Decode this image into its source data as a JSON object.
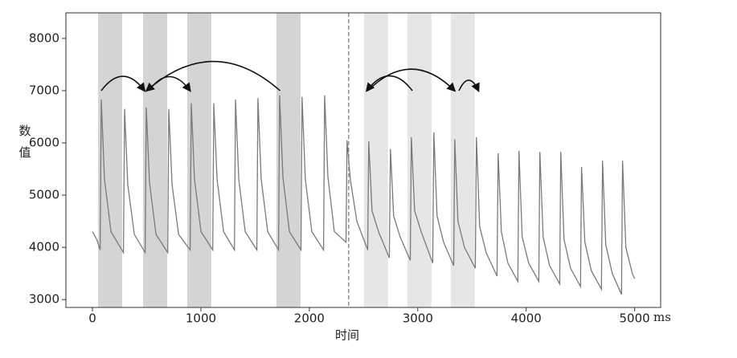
{
  "chart_data": {
    "type": "line",
    "x_label": "时间",
    "x_unit": "ms",
    "y_label": "数值",
    "xlim": [
      -245,
      5240
    ],
    "ylim": [
      2850,
      8490
    ],
    "xticks": [
      0,
      1000,
      2000,
      3000,
      4000,
      5000
    ],
    "yticks": [
      3000,
      4000,
      5000,
      6000,
      7000,
      8000
    ],
    "series": [
      {
        "color": "#7a7a7a",
        "x": [
          0,
          40,
          71,
          81,
          111,
          171,
          286,
          296,
          326,
          386,
          486,
          496,
          526,
          586,
          694,
          704,
          734,
          794,
          901,
          911,
          941,
          1001,
          1109,
          1119,
          1149,
          1209,
          1309,
          1319,
          1349,
          1409,
          1516,
          1526,
          1556,
          1616,
          1716,
          1726,
          1756,
          1816,
          1923,
          1933,
          1963,
          2023,
          2131,
          2141,
          2171,
          2231,
          2338,
          2348,
          2378,
          2438,
          2538,
          2548,
          2578,
          2638,
          2738,
          2748,
          2778,
          2838,
          2931,
          2941,
          2971,
          3031,
          3138,
          3148,
          3178,
          3238,
          3331,
          3341,
          3371,
          3431,
          3531,
          3541,
          3571,
          3631,
          3731,
          3741,
          3771,
          3831,
          3923,
          3933,
          3963,
          4023,
          4116,
          4126,
          4156,
          4216,
          4309,
          4319,
          4349,
          4409,
          4501,
          4511,
          4541,
          4601,
          4694,
          4704,
          4734,
          4794,
          4879,
          4889,
          4919,
          4979,
          5000
        ],
        "values": [
          4300,
          4150,
          3950,
          6830,
          5300,
          4300,
          3900,
          6650,
          5200,
          4250,
          3900,
          6680,
          5250,
          4250,
          3900,
          6650,
          5200,
          4250,
          3950,
          6760,
          5300,
          4300,
          3950,
          6760,
          5300,
          4300,
          3950,
          6830,
          5300,
          4300,
          3950,
          6860,
          5300,
          4300,
          3950,
          6910,
          5350,
          4300,
          3950,
          6880,
          5300,
          4300,
          3950,
          6910,
          5350,
          4300,
          4100,
          6050,
          5300,
          4500,
          3950,
          6030,
          4700,
          4300,
          3800,
          5880,
          4600,
          4200,
          3750,
          6110,
          4700,
          4300,
          3700,
          6200,
          4600,
          4100,
          3650,
          6070,
          4500,
          4000,
          3600,
          6110,
          4400,
          3900,
          3450,
          5800,
          4300,
          3700,
          3350,
          5850,
          4200,
          3700,
          3350,
          5830,
          4200,
          3650,
          3300,
          5830,
          4150,
          3600,
          3250,
          5540,
          4100,
          3550,
          3200,
          5660,
          4050,
          3500,
          3100,
          5660,
          4000,
          3500,
          3400
        ]
      }
    ],
    "spans": [
      {
        "start": 52,
        "end": 274,
        "color": "#d4d4d4"
      },
      {
        "start": 467,
        "end": 689,
        "color": "#d4d4d4"
      },
      {
        "start": 874,
        "end": 1096,
        "color": "#d4d4d4"
      },
      {
        "start": 1696,
        "end": 1919,
        "color": "#d4d4d4"
      },
      {
        "start": 2504,
        "end": 2726,
        "color": "#e6e6e6"
      },
      {
        "start": 2904,
        "end": 3126,
        "color": "#e6e6e6"
      },
      {
        "start": 3304,
        "end": 3526,
        "color": "#e6e6e6"
      }
    ],
    "vline": 2363,
    "arrow_level": 7000,
    "arrows": [
      {
        "from": 81,
        "to": 480
      },
      {
        "from": 520,
        "to": 900
      },
      {
        "from": 1730,
        "to": 500
      },
      {
        "from": 2950,
        "to": 2530
      },
      {
        "from": 2540,
        "to": 3340
      },
      {
        "from": 3380,
        "to": 3560
      }
    ]
  }
}
